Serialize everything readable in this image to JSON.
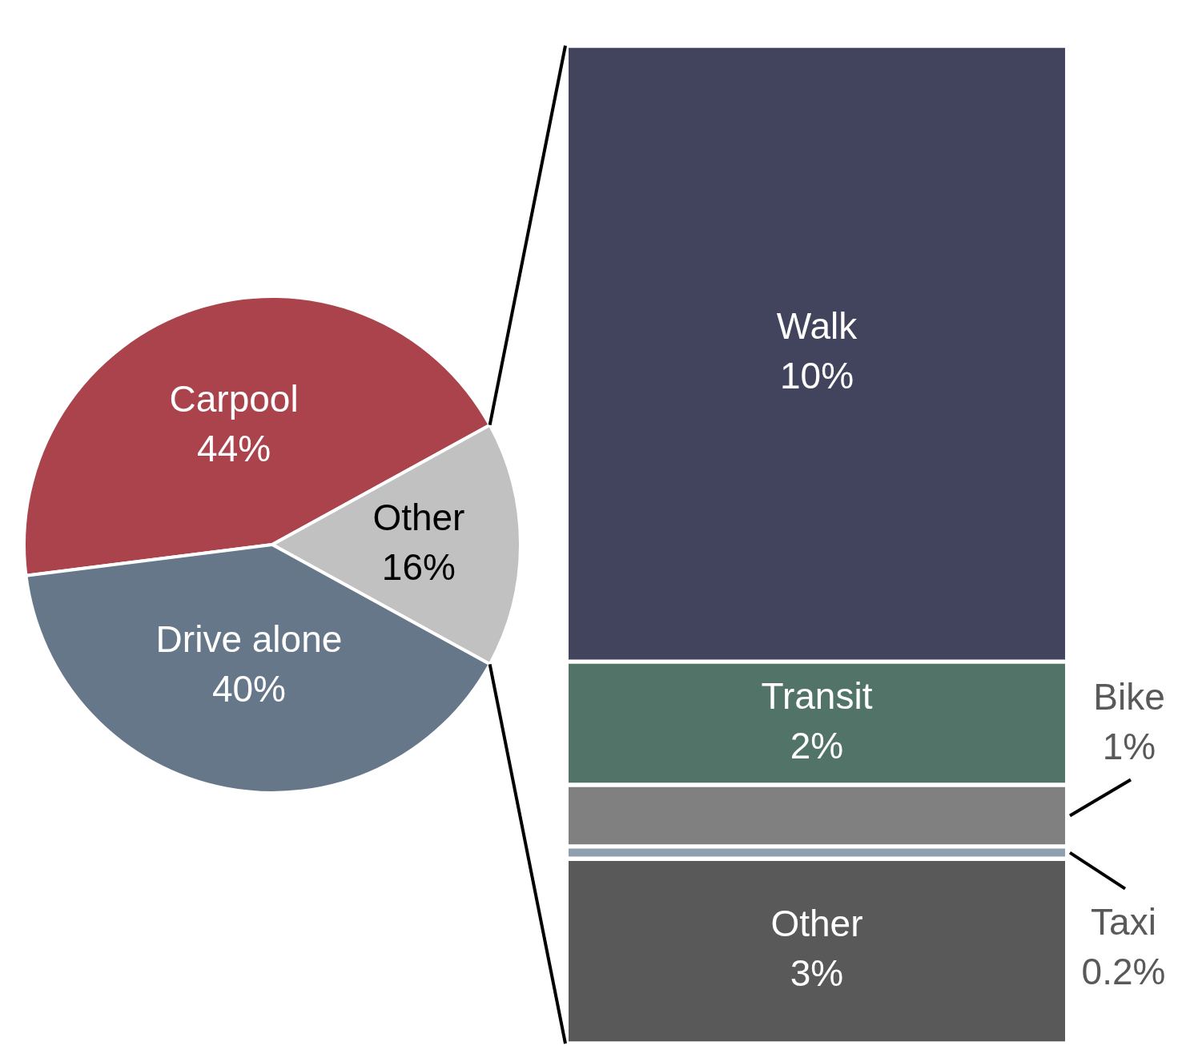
{
  "chart_data": [
    {
      "type": "pie",
      "categories": [
        "Carpool",
        "Other",
        "Drive alone"
      ],
      "values": [
        44,
        16,
        40
      ],
      "value_labels": [
        "44%",
        "16%",
        "40%"
      ],
      "colors": [
        "#ab434c",
        "#c0c1c0",
        "#66778a"
      ],
      "data_labels": true
    },
    {
      "type": "bar",
      "stacked": true,
      "tick_labels": false,
      "ylim": [
        0,
        16.2
      ],
      "data_labels": true,
      "series": [
        {
          "name": "Other",
          "color": "#595959",
          "values": [
            3
          ],
          "value_labels": [
            "3%"
          ]
        },
        {
          "name": "Taxi",
          "color": "#8f9fb0",
          "values": [
            0.2
          ],
          "value_labels": [
            "0.2%"
          ]
        },
        {
          "name": "Bike",
          "color": "#808080",
          "values": [
            1
          ],
          "value_labels": [
            "1%"
          ]
        },
        {
          "name": "Transit",
          "color": "#527367",
          "values": [
            2
          ],
          "value_labels": [
            "2%"
          ]
        },
        {
          "name": "Walk",
          "color": "#42435d",
          "values": [
            10
          ],
          "value_labels": [
            "10%"
          ]
        }
      ]
    }
  ]
}
